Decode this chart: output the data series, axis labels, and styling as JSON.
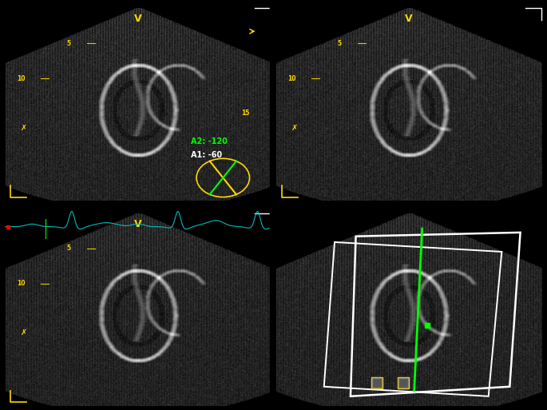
{
  "bg_color": "#000000",
  "border_color": "#1a1a1a",
  "panel_bg": "#050505",
  "yellow": "#FFD700",
  "green": "#00FF00",
  "cyan": "#00CCCC",
  "red": "#FF0000",
  "white": "#FFFFFF",
  "label_V": "V",
  "depth_labels": [
    "5",
    "10",
    "15"
  ],
  "A1_label": "A1: -60",
  "A2_label": "A2: -120",
  "panel_border_green": "#00CC00",
  "panel_border_yellow": "#CCCC00"
}
